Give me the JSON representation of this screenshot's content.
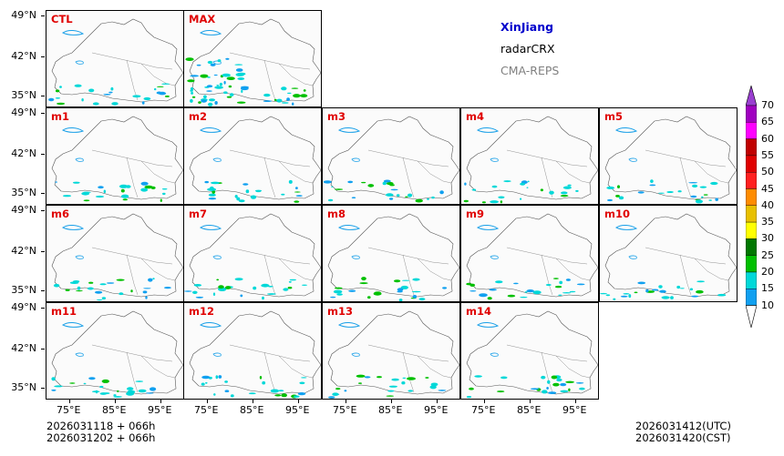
{
  "title": {
    "region": "XinJiang",
    "product": "radarCRX",
    "model": "CMA-REPS"
  },
  "colors": {
    "region": "#0000cc",
    "model": "#808080",
    "label": "#e00000"
  },
  "panels": [
    {
      "label": "CTL"
    },
    {
      "label": "MAX"
    },
    {
      "label": "m1"
    },
    {
      "label": "m2"
    },
    {
      "label": "m3"
    },
    {
      "label": "m4"
    },
    {
      "label": "m5"
    },
    {
      "label": "m6"
    },
    {
      "label": "m7"
    },
    {
      "label": "m8"
    },
    {
      "label": "m9"
    },
    {
      "label": "m10"
    },
    {
      "label": "m11"
    },
    {
      "label": "m12"
    },
    {
      "label": "m13"
    },
    {
      "label": "m14"
    }
  ],
  "lat_labels": [
    "49°N",
    "42°N",
    "35°N"
  ],
  "lon_labels": [
    "75°E",
    "85°E",
    "95°E"
  ],
  "colorbar": {
    "levels": [
      "70",
      "65",
      "60",
      "55",
      "50",
      "45",
      "40",
      "35",
      "30",
      "25",
      "20",
      "15",
      "10"
    ],
    "colors": [
      "#9a3fd1",
      "#a000c0",
      "#ff00ff",
      "#c00000",
      "#e00000",
      "#ff2020",
      "#ff8c00",
      "#e8c000",
      "#ffff00",
      "#007800",
      "#00c000",
      "#00d8d8",
      "#10a0f0",
      "#ffffff"
    ]
  },
  "footer": {
    "init_utc": "2026031118  +  066h",
    "init_cst": "2026031202  +  066h",
    "valid_utc": "2026031412(UTC)",
    "valid_cst": "2026031420(CST)"
  }
}
